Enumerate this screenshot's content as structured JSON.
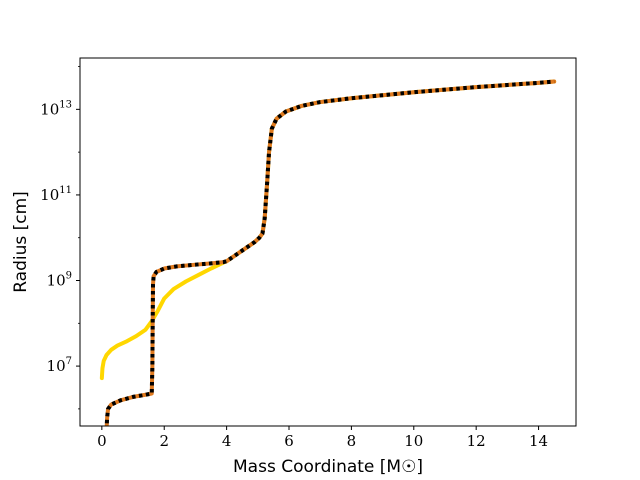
{
  "chart_data": {
    "type": "line",
    "title": "",
    "xlabel": "Mass Coordinate [M☉]",
    "ylabel": "Radius [cm]",
    "xlim": [
      -0.7,
      15.2
    ],
    "ylim_log10": [
      5.6,
      14.2
    ],
    "y_scale": "log",
    "x_ticks": [
      0,
      2,
      4,
      6,
      8,
      10,
      12,
      14
    ],
    "y_ticks": [
      {
        "base": "10",
        "exp": "7",
        "log10": 7
      },
      {
        "base": "10",
        "exp": "9",
        "log10": 9
      },
      {
        "base": "10",
        "exp": "11",
        "log10": 11
      },
      {
        "base": "10",
        "exp": "13",
        "log10": 13
      }
    ],
    "grid": false,
    "legend": "none",
    "series": [
      {
        "color": "#FFD700",
        "style": "solid",
        "points": [
          [
            0.0,
            6.72
          ],
          [
            0.02,
            6.95
          ],
          [
            0.06,
            7.12
          ],
          [
            0.15,
            7.26
          ],
          [
            0.3,
            7.38
          ],
          [
            0.5,
            7.48
          ],
          [
            0.8,
            7.58
          ],
          [
            1.1,
            7.7
          ],
          [
            1.4,
            7.85
          ],
          [
            1.6,
            8.05
          ],
          [
            1.8,
            8.3
          ],
          [
            2.0,
            8.58
          ],
          [
            2.3,
            8.8
          ],
          [
            2.7,
            8.98
          ],
          [
            3.1,
            9.13
          ],
          [
            3.5,
            9.28
          ],
          [
            3.9,
            9.42
          ],
          [
            4.0,
            9.45
          ],
          [
            4.3,
            9.6
          ],
          [
            4.6,
            9.75
          ],
          [
            4.9,
            9.9
          ],
          [
            5.05,
            10.0
          ],
          [
            5.15,
            10.1
          ],
          [
            5.22,
            10.45
          ],
          [
            5.3,
            11.3
          ],
          [
            5.36,
            12.0
          ],
          [
            5.45,
            12.55
          ],
          [
            5.6,
            12.78
          ],
          [
            5.9,
            12.95
          ],
          [
            6.4,
            13.08
          ],
          [
            7.0,
            13.17
          ],
          [
            8.0,
            13.26
          ],
          [
            9.0,
            13.33
          ],
          [
            10.0,
            13.4
          ],
          [
            11.0,
            13.46
          ],
          [
            12.0,
            13.52
          ],
          [
            13.0,
            13.57
          ],
          [
            14.0,
            13.62
          ],
          [
            14.5,
            13.65
          ]
        ]
      },
      {
        "color": "#E07A1F",
        "style": "solid",
        "points": [
          [
            0.15,
            5.5
          ],
          [
            0.17,
            5.8
          ],
          [
            0.2,
            6.0
          ],
          [
            0.3,
            6.1
          ],
          [
            0.6,
            6.2
          ],
          [
            1.0,
            6.28
          ],
          [
            1.4,
            6.33
          ],
          [
            1.6,
            6.36
          ],
          [
            1.62,
            7.0
          ],
          [
            1.63,
            8.0
          ],
          [
            1.64,
            8.9
          ],
          [
            1.66,
            9.1
          ],
          [
            1.75,
            9.2
          ],
          [
            2.0,
            9.28
          ],
          [
            2.4,
            9.33
          ],
          [
            3.0,
            9.37
          ],
          [
            3.5,
            9.4
          ],
          [
            3.9,
            9.43
          ],
          [
            4.0,
            9.45
          ],
          [
            4.3,
            9.6
          ],
          [
            4.6,
            9.75
          ],
          [
            4.9,
            9.9
          ],
          [
            5.05,
            10.0
          ],
          [
            5.15,
            10.1
          ],
          [
            5.22,
            10.45
          ],
          [
            5.3,
            11.3
          ],
          [
            5.36,
            12.0
          ],
          [
            5.45,
            12.55
          ],
          [
            5.6,
            12.78
          ],
          [
            5.9,
            12.95
          ],
          [
            6.4,
            13.08
          ],
          [
            7.0,
            13.17
          ],
          [
            8.0,
            13.26
          ],
          [
            9.0,
            13.33
          ],
          [
            10.0,
            13.4
          ],
          [
            11.0,
            13.46
          ],
          [
            12.0,
            13.52
          ],
          [
            13.0,
            13.57
          ],
          [
            14.0,
            13.62
          ],
          [
            14.5,
            13.65
          ]
        ]
      },
      {
        "color": "#000000",
        "style": "dotted",
        "points": [
          [
            0.15,
            5.5
          ],
          [
            0.17,
            5.8
          ],
          [
            0.2,
            6.0
          ],
          [
            0.3,
            6.1
          ],
          [
            0.6,
            6.2
          ],
          [
            1.0,
            6.28
          ],
          [
            1.4,
            6.33
          ],
          [
            1.6,
            6.36
          ],
          [
            1.62,
            7.0
          ],
          [
            1.63,
            8.0
          ],
          [
            1.64,
            8.9
          ],
          [
            1.66,
            9.1
          ],
          [
            1.75,
            9.2
          ],
          [
            2.0,
            9.28
          ],
          [
            2.4,
            9.33
          ],
          [
            3.0,
            9.37
          ],
          [
            3.5,
            9.4
          ],
          [
            3.9,
            9.43
          ],
          [
            4.0,
            9.45
          ],
          [
            4.3,
            9.6
          ],
          [
            4.6,
            9.75
          ],
          [
            4.9,
            9.9
          ],
          [
            5.05,
            10.0
          ],
          [
            5.15,
            10.1
          ],
          [
            5.22,
            10.45
          ],
          [
            5.3,
            11.3
          ],
          [
            5.36,
            12.0
          ],
          [
            5.45,
            12.55
          ],
          [
            5.6,
            12.78
          ],
          [
            5.9,
            12.95
          ],
          [
            6.4,
            13.08
          ],
          [
            7.0,
            13.17
          ],
          [
            8.0,
            13.26
          ],
          [
            9.0,
            13.33
          ],
          [
            10.0,
            13.4
          ],
          [
            11.0,
            13.46
          ],
          [
            12.0,
            13.52
          ],
          [
            13.0,
            13.57
          ],
          [
            14.0,
            13.62
          ],
          [
            14.5,
            13.65
          ]
        ]
      }
    ]
  }
}
